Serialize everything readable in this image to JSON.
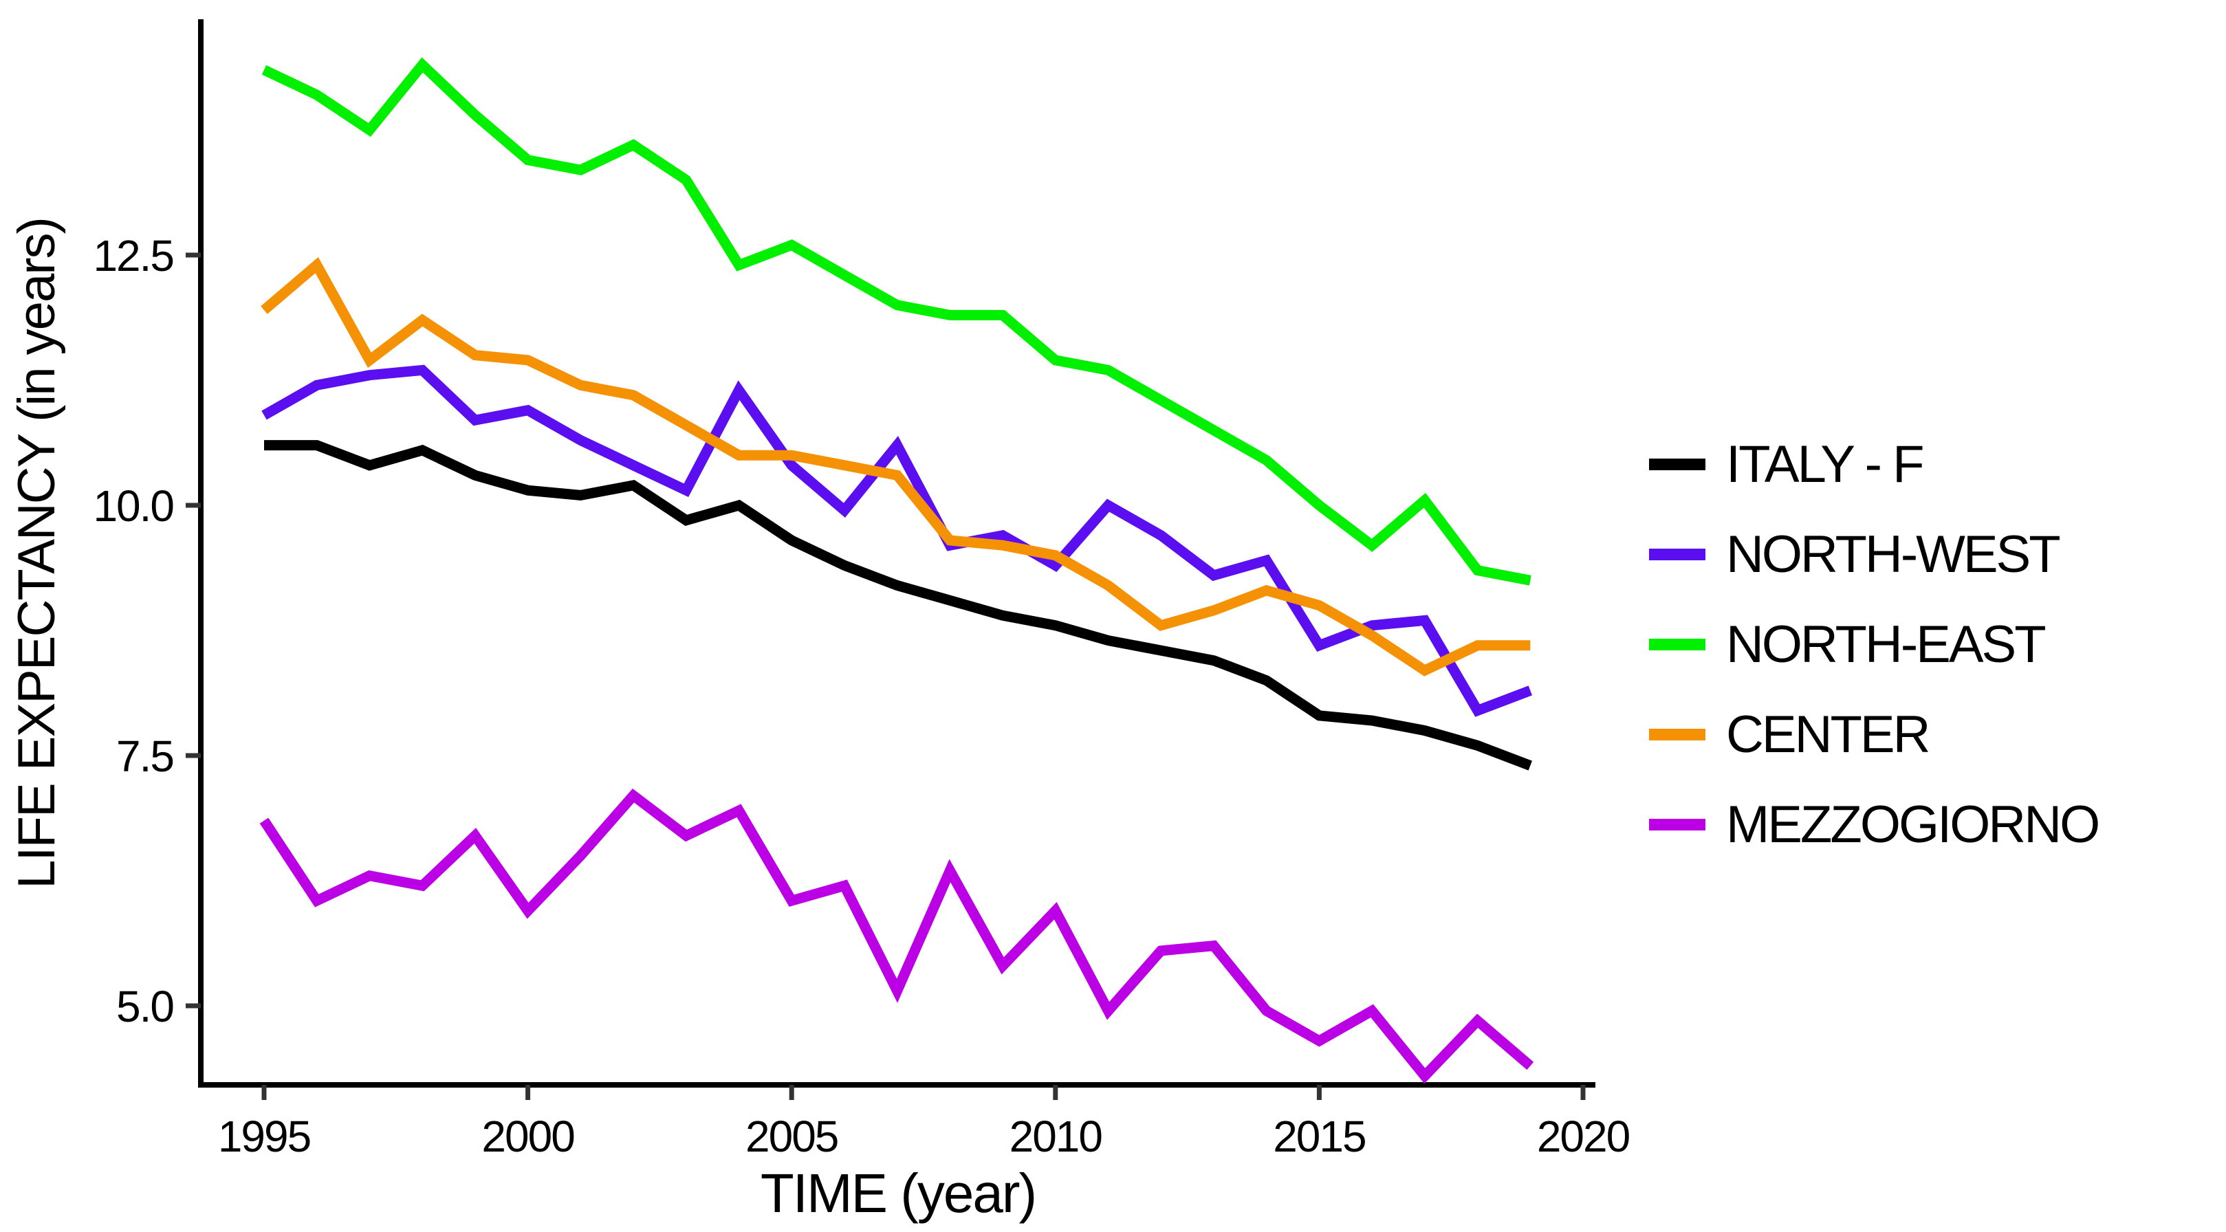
{
  "chart_data": {
    "type": "line",
    "title": "",
    "xlabel": "TIME (year)",
    "ylabel": "LIFE EXPECTANCY (in years)",
    "x": [
      1995,
      1996,
      1997,
      1998,
      1999,
      2000,
      2001,
      2002,
      2003,
      2004,
      2005,
      2006,
      2007,
      2008,
      2009,
      2010,
      2011,
      2012,
      2013,
      2014,
      2015,
      2016,
      2017,
      2018,
      2019
    ],
    "xlim": [
      1993.8,
      2020.6
    ],
    "ylim": [
      4.2,
      14.85
    ],
    "x_ticks": [
      1995,
      2000,
      2005,
      2010,
      2015,
      2020
    ],
    "x_tick_labels": [
      "1995",
      "2000",
      "2005",
      "2010",
      "2015",
      "2020"
    ],
    "y_ticks": [
      5.0,
      7.5,
      10.0,
      12.5
    ],
    "y_tick_labels": [
      "5.0",
      "7.5",
      "10.0",
      "12.5"
    ],
    "grid": false,
    "legend_position": "right",
    "series": [
      {
        "name": "ITALY - F",
        "color": "#000000",
        "values": [
          10.6,
          10.6,
          10.4,
          10.55,
          10.3,
          10.15,
          10.1,
          10.2,
          9.85,
          10.0,
          9.65,
          9.4,
          9.2,
          9.05,
          8.9,
          8.8,
          8.65,
          8.55,
          8.45,
          8.25,
          7.9,
          7.85,
          7.75,
          7.6,
          7.4
        ]
      },
      {
        "name": "NORTH-WEST",
        "color": "#5B0EF0",
        "values": [
          10.9,
          11.2,
          11.3,
          11.35,
          10.85,
          10.95,
          10.65,
          10.4,
          10.15,
          11.15,
          10.4,
          9.95,
          10.6,
          9.6,
          9.7,
          9.4,
          10.0,
          9.7,
          9.3,
          9.45,
          8.6,
          8.8,
          8.85,
          7.95,
          8.15
        ]
      },
      {
        "name": "NORTH-EAST",
        "color": "#00F000",
        "values": [
          14.35,
          14.1,
          13.75,
          14.4,
          13.9,
          13.45,
          13.35,
          13.6,
          13.25,
          12.4,
          12.6,
          12.3,
          12.0,
          11.9,
          11.9,
          11.45,
          11.35,
          11.05,
          10.75,
          10.45,
          10.0,
          9.6,
          10.05,
          9.35,
          9.25
        ]
      },
      {
        "name": "CENTER",
        "color": "#F59105",
        "values": [
          11.95,
          12.4,
          11.45,
          11.85,
          11.5,
          11.45,
          11.2,
          11.1,
          10.8,
          10.5,
          10.5,
          10.4,
          10.3,
          9.65,
          9.6,
          9.5,
          9.2,
          8.8,
          8.95,
          9.15,
          9.0,
          8.7,
          8.35,
          8.6,
          8.6
        ]
      },
      {
        "name": "MEZZOGIORNO",
        "color": "#BB00E6",
        "values": [
          6.85,
          6.05,
          6.3,
          6.2,
          6.7,
          5.95,
          6.5,
          7.1,
          6.7,
          6.95,
          6.05,
          6.2,
          5.15,
          6.35,
          5.4,
          5.95,
          4.95,
          5.55,
          5.6,
          4.95,
          4.65,
          4.95,
          4.3,
          4.85,
          4.4
        ]
      }
    ],
    "tick_color": "#333333",
    "axis_color": "#000000"
  }
}
